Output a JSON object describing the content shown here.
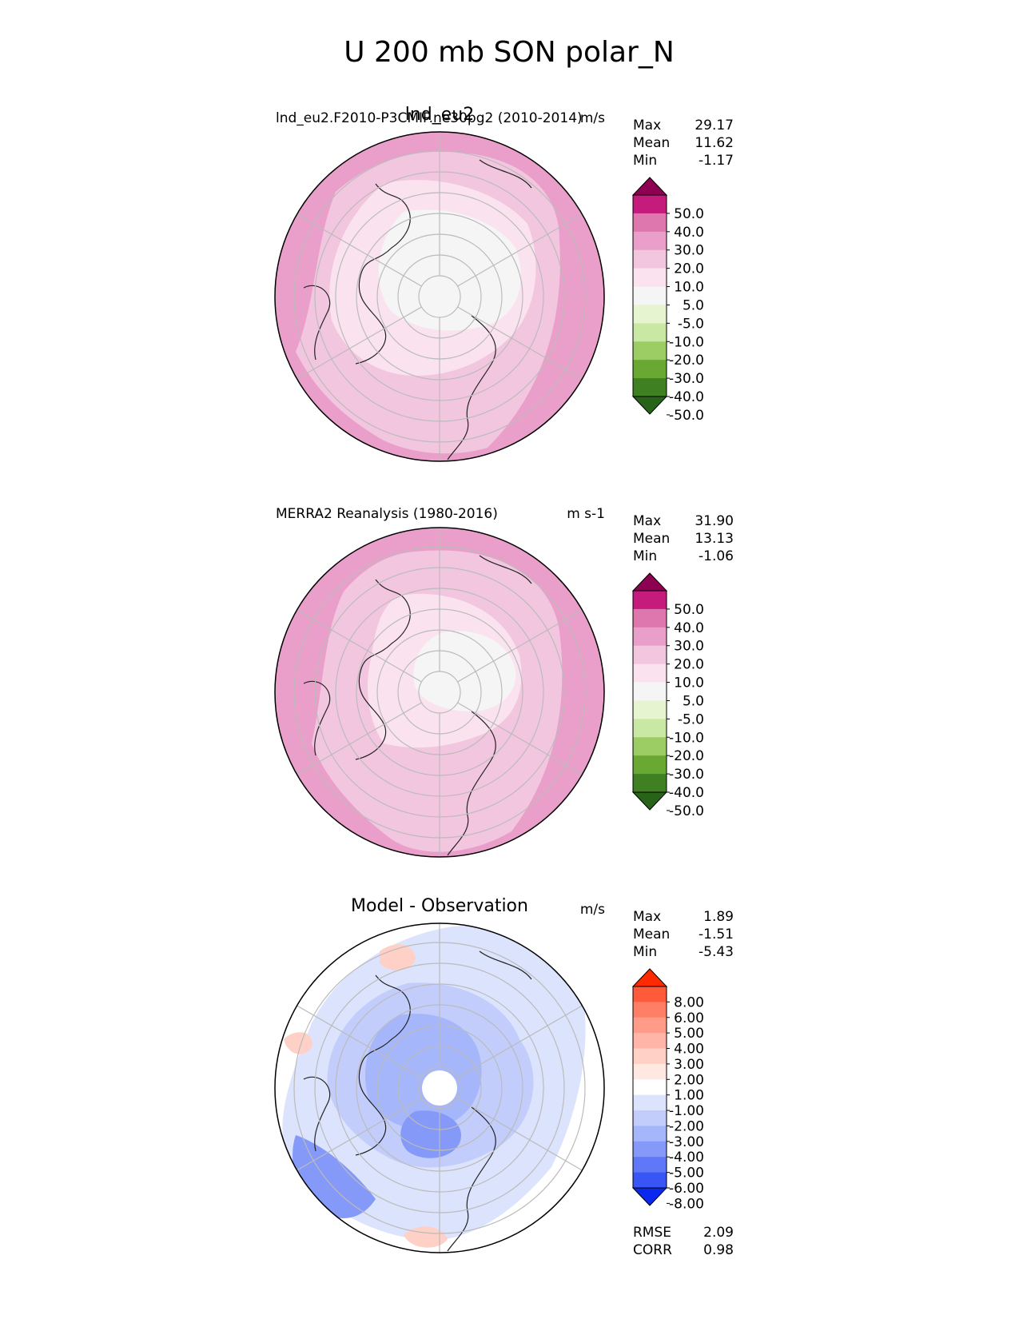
{
  "figure_title": "U 200 mb SON polar_N",
  "chart_data": [
    {
      "type": "heatmap",
      "projection": "north-polar-stereographic",
      "title": "lnd_eu2",
      "subtitle": "lnd_eu2.F2010-P3CMIP.ne30pg2 (2010-2014)",
      "units": "m/s",
      "stats": [
        {
          "label": "Max",
          "value": "29.17"
        },
        {
          "label": "Mean",
          "value": "11.62"
        },
        {
          "label": "Min",
          "value": "-1.17"
        }
      ],
      "colorbar": {
        "tick_labels": [
          "50.0",
          "40.0",
          "30.0",
          "20.0",
          "10.0",
          "5.0",
          "-5.0",
          "-10.0",
          "-20.0",
          "-30.0",
          "-40.0",
          "-50.0"
        ],
        "colors": [
          "#8e0152",
          "#c51b7d",
          "#de77ae",
          "#ea9fca",
          "#f3c6e0",
          "#fae3ef",
          "#f5f5f5",
          "#e6f5d0",
          "#c9e8a3",
          "#9ccd65",
          "#6aa834",
          "#3f8022",
          "#276419"
        ]
      },
      "field": {
        "pole_value": "-5.0 to 5.0",
        "midlatitude_value": "10.0 to 20.0",
        "jet_value": "20.0 to 30.0",
        "jet_location": "Pacific and North Atlantic edges"
      }
    },
    {
      "type": "heatmap",
      "projection": "north-polar-stereographic",
      "title": "",
      "subtitle": "MERRA2 Reanalysis (1980-2016)",
      "units": "m s-1",
      "stats": [
        {
          "label": "Max",
          "value": "31.90"
        },
        {
          "label": "Mean",
          "value": "13.13"
        },
        {
          "label": "Min",
          "value": "-1.06"
        }
      ],
      "colorbar": {
        "tick_labels": [
          "50.0",
          "40.0",
          "30.0",
          "20.0",
          "10.0",
          "5.0",
          "-5.0",
          "-10.0",
          "-20.0",
          "-30.0",
          "-40.0",
          "-50.0"
        ],
        "colors": [
          "#8e0152",
          "#c51b7d",
          "#de77ae",
          "#ea9fca",
          "#f3c6e0",
          "#fae3ef",
          "#f5f5f5",
          "#e6f5d0",
          "#c9e8a3",
          "#9ccd65",
          "#6aa834",
          "#3f8022",
          "#276419"
        ]
      }
    },
    {
      "type": "heatmap",
      "projection": "north-polar-stereographic",
      "title": "Model - Observation",
      "subtitle": "",
      "units": "m/s",
      "stats": [
        {
          "label": "Max",
          "value": "1.89"
        },
        {
          "label": "Mean",
          "value": "-1.51"
        },
        {
          "label": "Min",
          "value": "-5.43"
        }
      ],
      "colorbar": {
        "tick_labels": [
          "8.00",
          "6.00",
          "5.00",
          "4.00",
          "3.00",
          "2.00",
          "1.00",
          "-1.00",
          "-2.00",
          "-3.00",
          "-4.00",
          "-5.00",
          "-6.00",
          "-8.00"
        ],
        "colors": [
          "#ff2a00",
          "#ff5b3a",
          "#ff7f66",
          "#ff9b88",
          "#ffb6a8",
          "#ffd0c6",
          "#ffe7e2",
          "#ffffff",
          "#dce3fd",
          "#c2cdfb",
          "#a6b6fa",
          "#8499f8",
          "#6077f7",
          "#3a55f5",
          "#0a28f0"
        ]
      },
      "summary": [
        {
          "label": "RMSE",
          "value": "2.09"
        },
        {
          "label": "CORR",
          "value": "0.98"
        }
      ]
    }
  ]
}
